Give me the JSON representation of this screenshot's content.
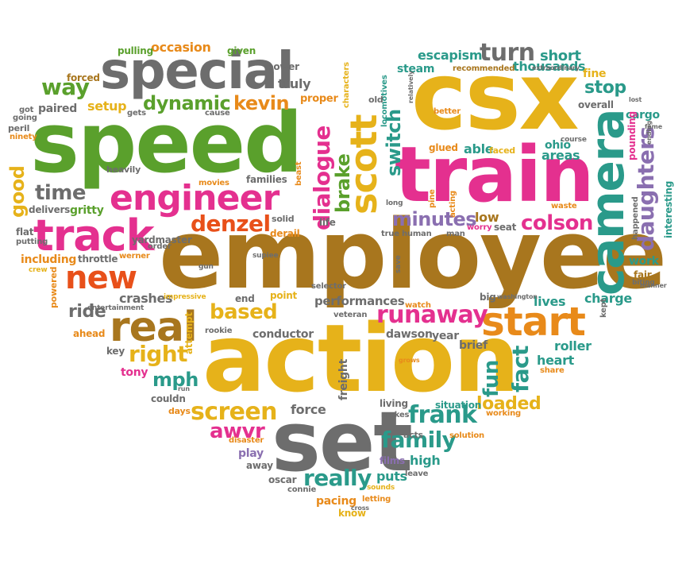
{
  "palette": {
    "green": "#5aa02c",
    "gray": "#6d6d6d",
    "orange": "#e88a1a",
    "pink": "#e4308f",
    "brown": "#a8761e",
    "yellow": "#e6b21a",
    "teal": "#2a9a8a",
    "purple": "#8a6fb0",
    "red": "#e8501a"
  },
  "words": [
    {
      "text": "employee",
      "color": "#a8761e"
    },
    {
      "text": "action",
      "color": "#e6b21a"
    },
    {
      "text": "speed",
      "color": "#5aa02c"
    },
    {
      "text": "csx",
      "color": "#e6b21a"
    },
    {
      "text": "train",
      "color": "#e4308f"
    },
    {
      "text": "set",
      "color": "#6d6d6d"
    },
    {
      "text": "special",
      "color": "#6d6d6d"
    },
    {
      "text": "camera",
      "color": "#2a9a8a"
    },
    {
      "text": "track",
      "color": "#e4308f"
    },
    {
      "text": "engineer",
      "color": "#e4308f"
    },
    {
      "text": "real",
      "color": "#a8761e"
    },
    {
      "text": "start",
      "color": "#e88a1a"
    },
    {
      "text": "scott",
      "color": "#e6b21a"
    },
    {
      "text": "new",
      "color": "#e8501a"
    },
    {
      "text": "runaway",
      "color": "#e4308f"
    },
    {
      "text": "denzel",
      "color": "#e8501a"
    },
    {
      "text": "dialogue",
      "color": "#e4308f"
    },
    {
      "text": "daughters",
      "color": "#8a6fb0"
    },
    {
      "text": "family",
      "color": "#2a9a8a"
    },
    {
      "text": "frank",
      "color": "#2a9a8a"
    },
    {
      "text": "really",
      "color": "#2a9a8a"
    },
    {
      "text": "screen",
      "color": "#e6b21a"
    },
    {
      "text": "fact",
      "color": "#2a9a8a"
    },
    {
      "text": "fun",
      "color": "#2a9a8a"
    },
    {
      "text": "right",
      "color": "#e6b21a"
    },
    {
      "text": "turn",
      "color": "#6d6d6d"
    },
    {
      "text": "way",
      "color": "#5aa02c"
    },
    {
      "text": "dynamic",
      "color": "#5aa02c"
    },
    {
      "text": "kevin",
      "color": "#e88a1a"
    },
    {
      "text": "time",
      "color": "#6d6d6d"
    },
    {
      "text": "good",
      "color": "#e6b21a"
    },
    {
      "text": "switch",
      "color": "#2a9a8a"
    },
    {
      "text": "brake",
      "color": "#5aa02c"
    },
    {
      "text": "minutes",
      "color": "#8a6fb0"
    },
    {
      "text": "colson",
      "color": "#e4308f"
    },
    {
      "text": "based",
      "color": "#e6b21a"
    },
    {
      "text": "awvr",
      "color": "#e4308f"
    },
    {
      "text": "mph",
      "color": "#2a9a8a"
    },
    {
      "text": "ride",
      "color": "#6d6d6d"
    },
    {
      "text": "loaded",
      "color": "#e6b21a"
    },
    {
      "text": "stop",
      "color": "#2a9a8a"
    },
    {
      "text": "escapism",
      "color": "#2a9a8a"
    },
    {
      "text": "thousands",
      "color": "#2a9a8a"
    },
    {
      "text": "short",
      "color": "#2a9a8a"
    },
    {
      "text": "occasion",
      "color": "#e88a1a"
    },
    {
      "text": "pulling",
      "color": "#5aa02c"
    },
    {
      "text": "given",
      "color": "#5aa02c"
    },
    {
      "text": "power",
      "color": "#6d6d6d"
    },
    {
      "text": "forced",
      "color": "#a8761e"
    },
    {
      "text": "paired",
      "color": "#6d6d6d"
    },
    {
      "text": "truly",
      "color": "#6d6d6d"
    },
    {
      "text": "setup",
      "color": "#e6b21a"
    },
    {
      "text": "proper",
      "color": "#e88a1a"
    },
    {
      "text": "steam",
      "color": "#2a9a8a"
    },
    {
      "text": "recommended",
      "color": "#a8761e"
    },
    {
      "text": "fine",
      "color": "#e6b21a"
    },
    {
      "text": "overall",
      "color": "#6d6d6d"
    },
    {
      "text": "cargo",
      "color": "#2a9a8a"
    },
    {
      "text": "ohio",
      "color": "#2a9a8a"
    },
    {
      "text": "areas",
      "color": "#2a9a8a"
    },
    {
      "text": "course",
      "color": "#6d6d6d"
    },
    {
      "text": "pounding",
      "color": "#e4308f"
    },
    {
      "text": "interesting",
      "color": "#2a9a8a"
    },
    {
      "text": "able",
      "color": "#2a9a8a"
    },
    {
      "text": "faced",
      "color": "#e6b21a"
    },
    {
      "text": "glued",
      "color": "#e88a1a"
    },
    {
      "text": "low",
      "color": "#a8761e"
    },
    {
      "text": "waste",
      "color": "#e88a1a"
    },
    {
      "text": "seat",
      "color": "#6d6d6d"
    },
    {
      "text": "worry",
      "color": "#e4308f"
    },
    {
      "text": "happened",
      "color": "#6d6d6d"
    },
    {
      "text": "work",
      "color": "#2a9a8a"
    },
    {
      "text": "fair",
      "color": "#a8761e"
    },
    {
      "text": "biting",
      "color": "#6d6d6d"
    },
    {
      "text": "charge",
      "color": "#2a9a8a"
    },
    {
      "text": "lives",
      "color": "#2a9a8a"
    },
    {
      "text": "big",
      "color": "#6d6d6d"
    },
    {
      "text": "kept",
      "color": "#6d6d6d"
    },
    {
      "text": "roller",
      "color": "#2a9a8a"
    },
    {
      "text": "heart",
      "color": "#2a9a8a"
    },
    {
      "text": "share",
      "color": "#e88a1a"
    },
    {
      "text": "performances",
      "color": "#6d6d6d"
    },
    {
      "text": "veteran",
      "color": "#6d6d6d"
    },
    {
      "text": "conductor",
      "color": "#6d6d6d"
    },
    {
      "text": "dawson",
      "color": "#6d6d6d"
    },
    {
      "text": "year",
      "color": "#6d6d6d"
    },
    {
      "text": "brief",
      "color": "#6d6d6d"
    },
    {
      "text": "crashes",
      "color": "#6d6d6d"
    },
    {
      "text": "impressive",
      "color": "#e6b21a"
    },
    {
      "text": "entertainment",
      "color": "#6d6d6d"
    },
    {
      "text": "ahead",
      "color": "#e88a1a"
    },
    {
      "text": "key",
      "color": "#6d6d6d"
    },
    {
      "text": "tony",
      "color": "#e4308f"
    },
    {
      "text": "attempt",
      "color": "#e6b21a"
    },
    {
      "text": "rookie",
      "color": "#6d6d6d"
    },
    {
      "text": "end",
      "color": "#6d6d6d"
    },
    {
      "text": "point",
      "color": "#e6b21a"
    },
    {
      "text": "selector",
      "color": "#6d6d6d"
    },
    {
      "text": "watch",
      "color": "#e88a1a"
    },
    {
      "text": "freight",
      "color": "#6d6d6d"
    },
    {
      "text": "force",
      "color": "#6d6d6d"
    },
    {
      "text": "situation",
      "color": "#2a9a8a"
    },
    {
      "text": "working",
      "color": "#e88a1a"
    },
    {
      "text": "living",
      "color": "#6d6d6d"
    },
    {
      "text": "makes",
      "color": "#6d6d6d"
    },
    {
      "text": "acts",
      "color": "#6d6d6d"
    },
    {
      "text": "solution",
      "color": "#e88a1a"
    },
    {
      "text": "high",
      "color": "#2a9a8a"
    },
    {
      "text": "films",
      "color": "#8a6fb0"
    },
    {
      "text": "puts",
      "color": "#2a9a8a"
    },
    {
      "text": "leave",
      "color": "#6d6d6d"
    },
    {
      "text": "pacing",
      "color": "#e88a1a"
    },
    {
      "text": "letting",
      "color": "#e88a1a"
    },
    {
      "text": "sounds",
      "color": "#e6b21a"
    },
    {
      "text": "know",
      "color": "#e6b21a"
    },
    {
      "text": "connie",
      "color": "#6d6d6d"
    },
    {
      "text": "oscar",
      "color": "#6d6d6d"
    },
    {
      "text": "away",
      "color": "#6d6d6d"
    },
    {
      "text": "play",
      "color": "#8a6fb0"
    },
    {
      "text": "disaster",
      "color": "#e88a1a"
    },
    {
      "text": "days",
      "color": "#e88a1a"
    },
    {
      "text": "couldn",
      "color": "#6d6d6d"
    },
    {
      "text": "locomotives",
      "color": "#2a9a8a"
    },
    {
      "text": "long",
      "color": "#6d6d6d"
    },
    {
      "text": "characters",
      "color": "#e6b21a"
    },
    {
      "text": "life",
      "color": "#6d6d6d"
    },
    {
      "text": "derail",
      "color": "#e88a1a"
    },
    {
      "text": "solid",
      "color": "#6d6d6d"
    },
    {
      "text": "beast",
      "color": "#e88a1a"
    },
    {
      "text": "families",
      "color": "#6d6d6d"
    },
    {
      "text": "movies",
      "color": "#e88a1a"
    },
    {
      "text": "heavily",
      "color": "#6d6d6d"
    },
    {
      "text": "delivers",
      "color": "#6d6d6d"
    },
    {
      "text": "gritty",
      "color": "#5aa02c"
    },
    {
      "text": "yardmaster",
      "color": "#6d6d6d"
    },
    {
      "text": "flat",
      "color": "#6d6d6d"
    },
    {
      "text": "putting",
      "color": "#6d6d6d"
    },
    {
      "text": "including",
      "color": "#e88a1a"
    },
    {
      "text": "throttle",
      "color": "#6d6d6d"
    },
    {
      "text": "werner",
      "color": "#e88a1a"
    },
    {
      "text": "powered",
      "color": "#e88a1a"
    },
    {
      "text": "crew",
      "color": "#e6b21a"
    },
    {
      "text": "peril",
      "color": "#6d6d6d"
    },
    {
      "text": "ninety",
      "color": "#e88a1a"
    },
    {
      "text": "going",
      "color": "#6d6d6d"
    },
    {
      "text": "got",
      "color": "#6d6d6d"
    },
    {
      "text": "gets",
      "color": "#6d6d6d"
    },
    {
      "text": "cause",
      "color": "#6d6d6d"
    },
    {
      "text": "order",
      "color": "#6d6d6d"
    },
    {
      "text": "old",
      "color": "#6d6d6d"
    },
    {
      "text": "better",
      "color": "#e88a1a"
    },
    {
      "text": "true",
      "color": "#6d6d6d"
    },
    {
      "text": "human",
      "color": "#6d6d6d"
    },
    {
      "text": "man",
      "color": "#6d6d6d"
    },
    {
      "text": "acting",
      "color": "#e88a1a"
    },
    {
      "text": "pine",
      "color": "#e88a1a"
    },
    {
      "text": "save",
      "color": "#6d6d6d"
    },
    {
      "text": "supiee",
      "color": "#6d6d6d"
    },
    {
      "text": "gun",
      "color": "#6d6d6d"
    },
    {
      "text": "washington",
      "color": "#6d6d6d"
    },
    {
      "text": "extraordinary",
      "color": "#6d6d6d"
    },
    {
      "text": "relatively",
      "color": "#6d6d6d"
    },
    {
      "text": "lost",
      "color": "#6d6d6d"
    },
    {
      "text": "manner",
      "color": "#6d6d6d"
    },
    {
      "text": "fame",
      "color": "#6d6d6d"
    },
    {
      "text": "ending",
      "color": "#6d6d6d"
    },
    {
      "text": "grows",
      "color": "#e88a1a"
    },
    {
      "text": "cross",
      "color": "#6d6d6d"
    },
    {
      "text": "run",
      "color": "#6d6d6d"
    }
  ]
}
